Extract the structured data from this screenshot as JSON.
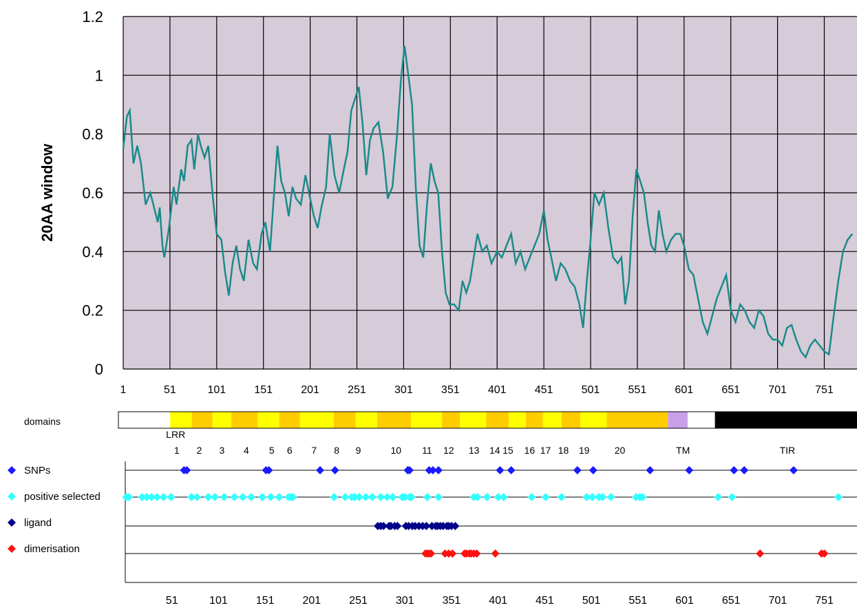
{
  "chart_data": {
    "type": "line",
    "ylabel": "20AA window",
    "ylim": [
      0,
      1.2
    ],
    "xlim": [
      1,
      786
    ],
    "yticks": [
      "0",
      "0.2",
      "0.4",
      "0.6",
      "0.8",
      "1",
      "1.2"
    ],
    "yticks_values": [
      0,
      0.2,
      0.4,
      0.6,
      0.8,
      1,
      1.2
    ],
    "xticks": [
      "1",
      "51",
      "101",
      "151",
      "201",
      "251",
      "301",
      "351",
      "401",
      "451",
      "501",
      "551",
      "601",
      "651",
      "701",
      "751"
    ],
    "xticks_values": [
      1,
      51,
      101,
      151,
      201,
      251,
      301,
      351,
      401,
      451,
      501,
      551,
      601,
      651,
      701,
      751
    ],
    "grid": true,
    "series": [
      {
        "line_color": "#1a8a8a",
        "points": [
          [
            1,
            0.75
          ],
          [
            5,
            0.86
          ],
          [
            8,
            0.88
          ],
          [
            12,
            0.7
          ],
          [
            16,
            0.76
          ],
          [
            20,
            0.7
          ],
          [
            25,
            0.56
          ],
          [
            30,
            0.6
          ],
          [
            34,
            0.55
          ],
          [
            38,
            0.5
          ],
          [
            40,
            0.55
          ],
          [
            43,
            0.42
          ],
          [
            45,
            0.38
          ],
          [
            50,
            0.48
          ],
          [
            55,
            0.62
          ],
          [
            58,
            0.56
          ],
          [
            63,
            0.68
          ],
          [
            66,
            0.64
          ],
          [
            70,
            0.76
          ],
          [
            74,
            0.78
          ],
          [
            77,
            0.68
          ],
          [
            81,
            0.8
          ],
          [
            84,
            0.76
          ],
          [
            88,
            0.72
          ],
          [
            92,
            0.76
          ],
          [
            97,
            0.58
          ],
          [
            101,
            0.46
          ],
          [
            106,
            0.44
          ],
          [
            110,
            0.33
          ],
          [
            114,
            0.25
          ],
          [
            118,
            0.36
          ],
          [
            122,
            0.42
          ],
          [
            126,
            0.34
          ],
          [
            130,
            0.3
          ],
          [
            135,
            0.44
          ],
          [
            140,
            0.36
          ],
          [
            144,
            0.34
          ],
          [
            149,
            0.46
          ],
          [
            153,
            0.5
          ],
          [
            158,
            0.4
          ],
          [
            162,
            0.58
          ],
          [
            166,
            0.76
          ],
          [
            170,
            0.64
          ],
          [
            174,
            0.6
          ],
          [
            178,
            0.52
          ],
          [
            182,
            0.62
          ],
          [
            186,
            0.58
          ],
          [
            191,
            0.56
          ],
          [
            196,
            0.66
          ],
          [
            201,
            0.58
          ],
          [
            205,
            0.52
          ],
          [
            209,
            0.48
          ],
          [
            213,
            0.55
          ],
          [
            218,
            0.62
          ],
          [
            222,
            0.8
          ],
          [
            227,
            0.66
          ],
          [
            232,
            0.6
          ],
          [
            237,
            0.68
          ],
          [
            241,
            0.74
          ],
          [
            245,
            0.88
          ],
          [
            249,
            0.92
          ],
          [
            253,
            0.96
          ],
          [
            257,
            0.84
          ],
          [
            261,
            0.66
          ],
          [
            265,
            0.78
          ],
          [
            269,
            0.82
          ],
          [
            274,
            0.84
          ],
          [
            279,
            0.74
          ],
          [
            284,
            0.58
          ],
          [
            289,
            0.62
          ],
          [
            294,
            0.8
          ],
          [
            298,
            0.98
          ],
          [
            302,
            1.1
          ],
          [
            306,
            1.0
          ],
          [
            310,
            0.9
          ],
          [
            314,
            0.62
          ],
          [
            318,
            0.42
          ],
          [
            322,
            0.38
          ],
          [
            326,
            0.56
          ],
          [
            330,
            0.7
          ],
          [
            334,
            0.64
          ],
          [
            338,
            0.6
          ],
          [
            342,
            0.4
          ],
          [
            346,
            0.26
          ],
          [
            350,
            0.22
          ],
          [
            355,
            0.22
          ],
          [
            360,
            0.2
          ],
          [
            364,
            0.3
          ],
          [
            368,
            0.26
          ],
          [
            372,
            0.3
          ],
          [
            376,
            0.38
          ],
          [
            380,
            0.46
          ],
          [
            385,
            0.4
          ],
          [
            390,
            0.42
          ],
          [
            395,
            0.36
          ],
          [
            401,
            0.4
          ],
          [
            406,
            0.38
          ],
          [
            411,
            0.42
          ],
          [
            416,
            0.46
          ],
          [
            421,
            0.36
          ],
          [
            426,
            0.4
          ],
          [
            431,
            0.34
          ],
          [
            436,
            0.38
          ],
          [
            441,
            0.42
          ],
          [
            446,
            0.46
          ],
          [
            451,
            0.54
          ],
          [
            455,
            0.44
          ],
          [
            459,
            0.38
          ],
          [
            464,
            0.3
          ],
          [
            469,
            0.36
          ],
          [
            474,
            0.34
          ],
          [
            479,
            0.3
          ],
          [
            484,
            0.28
          ],
          [
            489,
            0.22
          ],
          [
            493,
            0.14
          ],
          [
            497,
            0.3
          ],
          [
            501,
            0.44
          ],
          [
            505,
            0.6
          ],
          [
            510,
            0.56
          ],
          [
            515,
            0.6
          ],
          [
            520,
            0.48
          ],
          [
            525,
            0.38
          ],
          [
            530,
            0.36
          ],
          [
            534,
            0.38
          ],
          [
            538,
            0.22
          ],
          [
            542,
            0.3
          ],
          [
            546,
            0.52
          ],
          [
            550,
            0.68
          ],
          [
            554,
            0.64
          ],
          [
            558,
            0.6
          ],
          [
            562,
            0.5
          ],
          [
            566,
            0.42
          ],
          [
            570,
            0.4
          ],
          [
            574,
            0.54
          ],
          [
            578,
            0.46
          ],
          [
            582,
            0.4
          ],
          [
            587,
            0.44
          ],
          [
            592,
            0.46
          ],
          [
            597,
            0.46
          ],
          [
            601,
            0.42
          ],
          [
            606,
            0.34
          ],
          [
            611,
            0.32
          ],
          [
            616,
            0.24
          ],
          [
            621,
            0.16
          ],
          [
            626,
            0.12
          ],
          [
            631,
            0.18
          ],
          [
            636,
            0.24
          ],
          [
            641,
            0.28
          ],
          [
            646,
            0.32
          ],
          [
            651,
            0.2
          ],
          [
            656,
            0.16
          ],
          [
            661,
            0.22
          ],
          [
            666,
            0.2
          ],
          [
            671,
            0.16
          ],
          [
            676,
            0.14
          ],
          [
            681,
            0.2
          ],
          [
            686,
            0.18
          ],
          [
            691,
            0.12
          ],
          [
            696,
            0.1
          ],
          [
            701,
            0.1
          ],
          [
            706,
            0.08
          ],
          [
            711,
            0.14
          ],
          [
            716,
            0.15
          ],
          [
            721,
            0.1
          ],
          [
            726,
            0.06
          ],
          [
            731,
            0.04
          ],
          [
            736,
            0.08
          ],
          [
            741,
            0.1
          ],
          [
            746,
            0.08
          ],
          [
            751,
            0.06
          ],
          [
            756,
            0.05
          ],
          [
            761,
            0.18
          ],
          [
            766,
            0.3
          ],
          [
            771,
            0.4
          ],
          [
            776,
            0.44
          ],
          [
            781,
            0.46
          ]
        ]
      }
    ]
  },
  "domains_track": {
    "label": "domains",
    "lrr_label": "LRR",
    "tm_label": "TM",
    "tir_label": "TIR",
    "lrr_numbers": [
      "1",
      "2",
      "3",
      "4",
      "5",
      "6",
      "7",
      "8",
      "9",
      "10",
      "11",
      "12",
      "13",
      "14",
      "15",
      "16",
      "17",
      "18",
      "19",
      "20"
    ],
    "lrr_positions": [
      63,
      87,
      111,
      137,
      164,
      183,
      209,
      233,
      256,
      296,
      329,
      352,
      379,
      401,
      415,
      438,
      455,
      474,
      496,
      534
    ],
    "lrr_blocks": [
      [
        56,
        79
      ],
      [
        79,
        101
      ],
      [
        101,
        121
      ],
      [
        121,
        149
      ],
      [
        149,
        172
      ],
      [
        172,
        194
      ],
      [
        194,
        230
      ],
      [
        230,
        253
      ],
      [
        253,
        276
      ],
      [
        276,
        312
      ],
      [
        312,
        345
      ],
      [
        345,
        364
      ],
      [
        364,
        392
      ],
      [
        392,
        416
      ],
      [
        416,
        434
      ],
      [
        434,
        452
      ],
      [
        452,
        472
      ],
      [
        472,
        492
      ],
      [
        492,
        520
      ],
      [
        520,
        585
      ]
    ],
    "blocks": [
      {
        "from": 1,
        "to": 56,
        "color": "#ffffff"
      },
      {
        "from": 585,
        "to": 606,
        "color": "#c9a0e8"
      },
      {
        "from": 606,
        "to": 635,
        "color": "#ffffff"
      },
      {
        "from": 635,
        "to": 786,
        "color": "#000000"
      }
    ],
    "lrr_colors": [
      "#ffff00",
      "#ffcc00"
    ],
    "tm_position": 601,
    "tir_position": 712
  },
  "site_tracks": [
    {
      "label": "SNPs",
      "color": "#1a1aff",
      "positions": [
        64,
        67,
        152,
        155,
        210,
        226,
        304,
        306,
        327,
        331,
        337,
        403,
        415,
        486,
        503,
        564,
        606,
        654,
        665,
        718
      ]
    },
    {
      "label": "positive selected",
      "color": "#33ffff",
      "positions": [
        2,
        5,
        19,
        24,
        29,
        35,
        42,
        50,
        72,
        78,
        90,
        97,
        107,
        118,
        127,
        136,
        148,
        157,
        166,
        176,
        179,
        181,
        225,
        237,
        244,
        247,
        252,
        259,
        266,
        275,
        282,
        288,
        298,
        301,
        306,
        308,
        325,
        337,
        375,
        379,
        389,
        401,
        407,
        437,
        452,
        469,
        496,
        502,
        509,
        513,
        522,
        549,
        553,
        556,
        637,
        652,
        766
      ]
    },
    {
      "label": "ligand",
      "color": "#000088",
      "positions": [
        272,
        275,
        278,
        284,
        286,
        290,
        293,
        302,
        305,
        309,
        312,
        316,
        320,
        324,
        330,
        334,
        336,
        339,
        342,
        346,
        348,
        351,
        355
      ]
    },
    {
      "label": "dimerisation",
      "color": "#ff1111",
      "positions": [
        323,
        325,
        327,
        329,
        344,
        348,
        352,
        365,
        367,
        370,
        372,
        375,
        378,
        398,
        682,
        748,
        751
      ]
    }
  ],
  "bottom_axis": {
    "xticks": [
      "51",
      "101",
      "151",
      "201",
      "251",
      "301",
      "351",
      "401",
      "451",
      "501",
      "551",
      "601",
      "651",
      "701",
      "751"
    ],
    "xticks_values": [
      51,
      101,
      151,
      201,
      251,
      301,
      351,
      401,
      451,
      501,
      551,
      601,
      651,
      701,
      751
    ]
  }
}
